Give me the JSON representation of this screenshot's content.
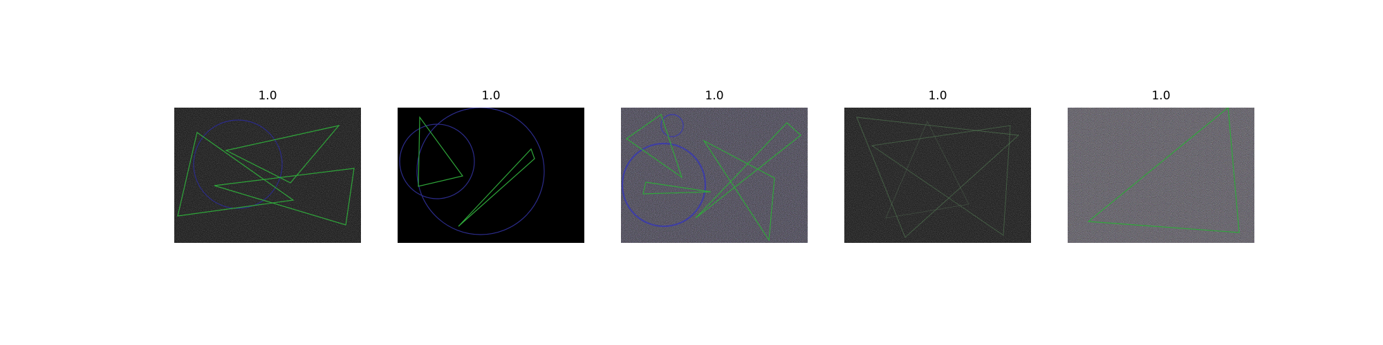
{
  "panels": [
    {
      "title": "1.0",
      "background": "#1a1a1a",
      "noise": "gray"
    },
    {
      "title": "1.0",
      "background": "#000000",
      "noise": "none"
    },
    {
      "title": "1.0",
      "background": "#3a3a3a",
      "noise": "purple"
    },
    {
      "title": "1.0",
      "background": "#1c1c1c",
      "noise": "gray"
    },
    {
      "title": "1.0",
      "background": "#4a4a4a",
      "noise": "color"
    }
  ],
  "colors": {
    "page_background": "#ffffff",
    "triangle_stroke": "#2fa83a",
    "circle_stroke": "#2c2c8c"
  }
}
